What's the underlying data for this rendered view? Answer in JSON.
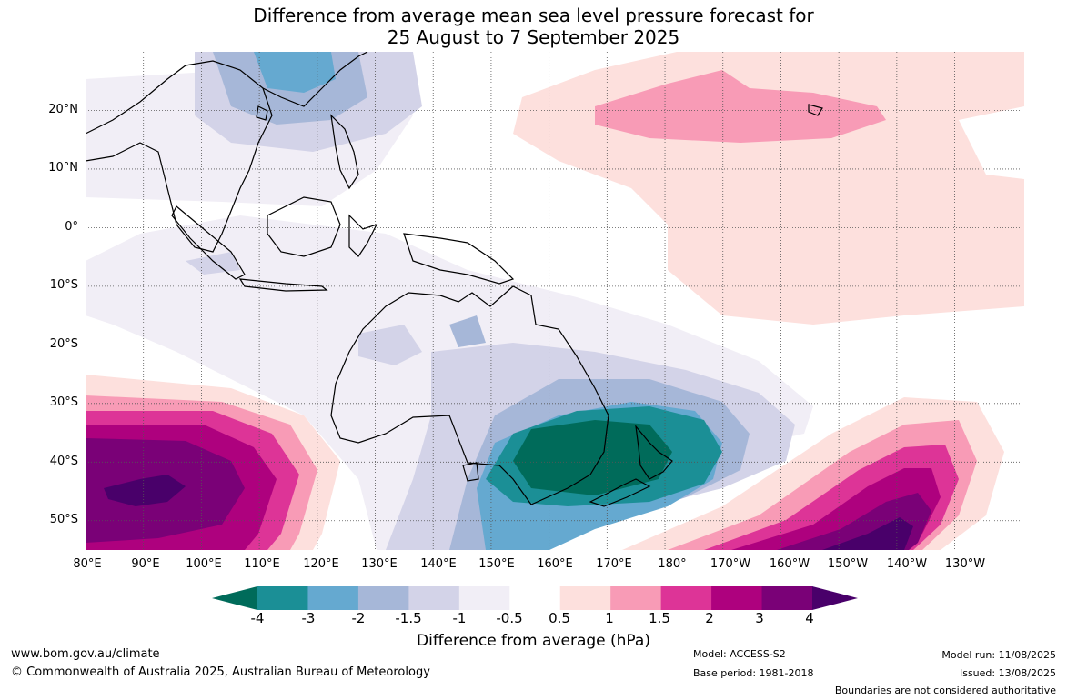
{
  "title": {
    "line1": "Difference from average mean sea level pressure forecast for",
    "line2": "25 August to 7 September 2025"
  },
  "map": {
    "lon_range": [
      80,
      242
    ],
    "lat_range": [
      -55,
      30
    ],
    "lat_ticks": [
      {
        "lat": 20,
        "label": "20°N"
      },
      {
        "lat": 10,
        "label": "10°N"
      },
      {
        "lat": 0,
        "label": "0°"
      },
      {
        "lat": -10,
        "label": "10°S"
      },
      {
        "lat": -20,
        "label": "20°S"
      },
      {
        "lat": -30,
        "label": "30°S"
      },
      {
        "lat": -40,
        "label": "40°S"
      },
      {
        "lat": -50,
        "label": "50°S"
      }
    ],
    "lon_ticks": [
      {
        "lon": 80,
        "label": "80°E"
      },
      {
        "lon": 90,
        "label": "90°E"
      },
      {
        "lon": 100,
        "label": "100°E"
      },
      {
        "lon": 110,
        "label": "110°E"
      },
      {
        "lon": 120,
        "label": "120°E"
      },
      {
        "lon": 130,
        "label": "130°E"
      },
      {
        "lon": 140,
        "label": "140°E"
      },
      {
        "lon": 150,
        "label": "150°E"
      },
      {
        "lon": 160,
        "label": "160°E"
      },
      {
        "lon": 170,
        "label": "170°E"
      },
      {
        "lon": 180,
        "label": "180°"
      },
      {
        "lon": 190,
        "label": "170°W"
      },
      {
        "lon": 200,
        "label": "160°W"
      },
      {
        "lon": 210,
        "label": "150°W"
      },
      {
        "lon": 220,
        "label": "140°W"
      },
      {
        "lon": 230,
        "label": "130°W"
      }
    ],
    "anomaly_features": [
      {
        "name": "tasman-sea-low",
        "lon": 165,
        "lat": -39,
        "min_hpa": -4
      },
      {
        "name": "southern-indian-ocean-high",
        "lon": 90,
        "lat": -46,
        "max_hpa": 4
      },
      {
        "name": "southern-pacific-high",
        "lon": 210,
        "lat": -51,
        "max_hpa": 4
      },
      {
        "name": "north-pacific-high",
        "lon": 185,
        "lat": 22,
        "max_hpa": 1.5
      }
    ]
  },
  "colorbar": {
    "levels": [
      "-4",
      "-3",
      "-2",
      "-1.5",
      "-1",
      "-0.5",
      "0.5",
      "1",
      "1.5",
      "2",
      "3",
      "4"
    ],
    "colors": [
      "#006b5a",
      "#1b8f96",
      "#65a9d0",
      "#a6b7d8",
      "#d3d3e8",
      "#f1eef6",
      "#ffffff",
      "#fde0dd",
      "#f89bb6",
      "#dd3497",
      "#ae017e",
      "#7a0177",
      "#49006a"
    ],
    "label": "Difference from average (hPa)"
  },
  "footer": {
    "website": "www.bom.gov.au/climate",
    "copyright": "© Commonwealth of Australia 2025, Australian Bureau of Meteorology",
    "model": "Model: ACCESS-S2",
    "base_period": "Base period: 1981-2018",
    "model_run": "Model run: 11/08/2025",
    "issued": "Issued: 13/08/2025",
    "disclaimer": "Boundaries are not considered authoritative"
  }
}
